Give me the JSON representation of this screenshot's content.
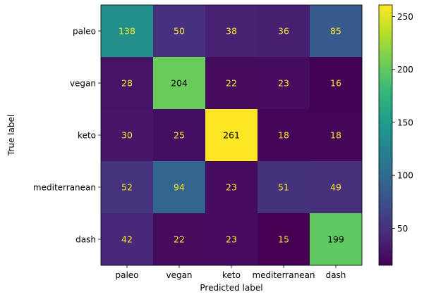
{
  "chart_data": {
    "type": "heatmap",
    "title": "",
    "xlabel": "Predicted label",
    "ylabel": "True label",
    "x_categories": [
      "paleo",
      "vegan",
      "keto",
      "mediterranean",
      "dash"
    ],
    "y_categories": [
      "paleo",
      "vegan",
      "keto",
      "mediterranean",
      "dash"
    ],
    "values": [
      [
        138,
        50,
        38,
        36,
        85
      ],
      [
        28,
        204,
        22,
        23,
        16
      ],
      [
        30,
        25,
        261,
        18,
        18
      ],
      [
        52,
        94,
        23,
        51,
        49
      ],
      [
        42,
        22,
        23,
        15,
        199
      ]
    ],
    "colormap": "viridis",
    "value_range": [
      15,
      261
    ],
    "colorbar": {
      "ticks": [
        50,
        100,
        150,
        200,
        250
      ]
    },
    "text_colors": {
      "low": "#fde725",
      "high": "#000000"
    },
    "grid": false
  }
}
